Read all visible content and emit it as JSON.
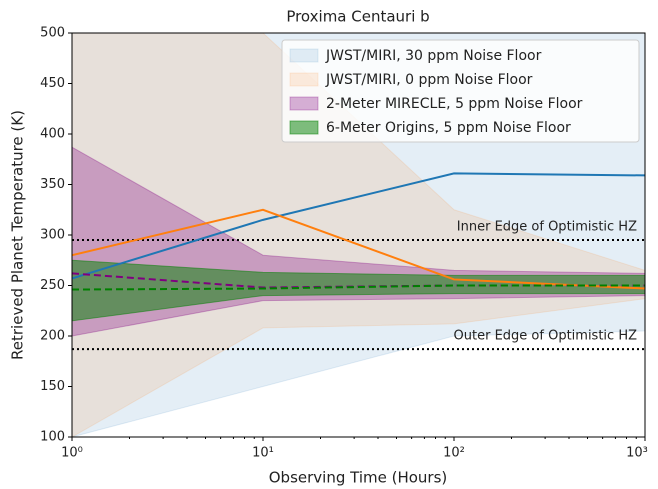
{
  "chart_data": {
    "type": "band",
    "title": "Proxima Centauri b",
    "xlabel": "Observing Time (Hours)",
    "ylabel": "Retrieved Planet Temperature (K)",
    "xscale": "log",
    "x": [
      1,
      10,
      100,
      1000
    ],
    "xlim": [
      1,
      1000
    ],
    "xticks": [
      {
        "value": 1,
        "label": "10⁰"
      },
      {
        "value": 10,
        "label": "10¹"
      },
      {
        "value": 100,
        "label": "10²"
      },
      {
        "value": 1000,
        "label": "10³"
      }
    ],
    "ylim": [
      100,
      500
    ],
    "yticks": [
      100,
      150,
      200,
      250,
      300,
      350,
      400,
      450,
      500
    ],
    "legend": "upper right",
    "series": [
      {
        "name": "JWST/MIRI, 30 ppm Noise Floor",
        "color": "#1f77b4",
        "alpha": 0.12,
        "line_color": "#1f77b4",
        "line_style": "solid",
        "lower": [
          100,
          150,
          200,
          205
        ],
        "upper": [
          500,
          500,
          500,
          500
        ],
        "values": [
          257,
          315,
          361,
          359
        ]
      },
      {
        "name": "JWST/MIRI, 0 ppm Noise Floor",
        "color": "#ff7f0e",
        "alpha": 0.12,
        "line_color": "#ff7f0e",
        "line_style": "solid",
        "lower": [
          100,
          208,
          212,
          237
        ],
        "upper": [
          500,
          500,
          325,
          265
        ],
        "values": [
          280,
          325,
          256,
          247
        ]
      },
      {
        "name": "2-Meter MIRECLE, 5 ppm Noise Floor",
        "color": "#800080",
        "alpha": 0.3,
        "line_color": "#800080",
        "line_style": "dashed",
        "lower": [
          200,
          235,
          237,
          240
        ],
        "upper": [
          387,
          280,
          265,
          262
        ],
        "values": [
          262,
          248,
          250,
          250
        ]
      },
      {
        "name": "6-Meter Origins, 5 ppm Noise Floor",
        "color": "#008000",
        "alpha": 0.5,
        "line_color": "#008000",
        "line_style": "dashed",
        "lower": [
          215,
          240,
          242,
          242
        ],
        "upper": [
          275,
          263,
          260,
          260
        ],
        "values": [
          246,
          247,
          250,
          250
        ]
      }
    ],
    "hlines": [
      {
        "y": 295,
        "label": "Inner Edge of Optimistic HZ"
      },
      {
        "y": 187,
        "label": "Outer Edge of Optimistic HZ"
      }
    ]
  }
}
